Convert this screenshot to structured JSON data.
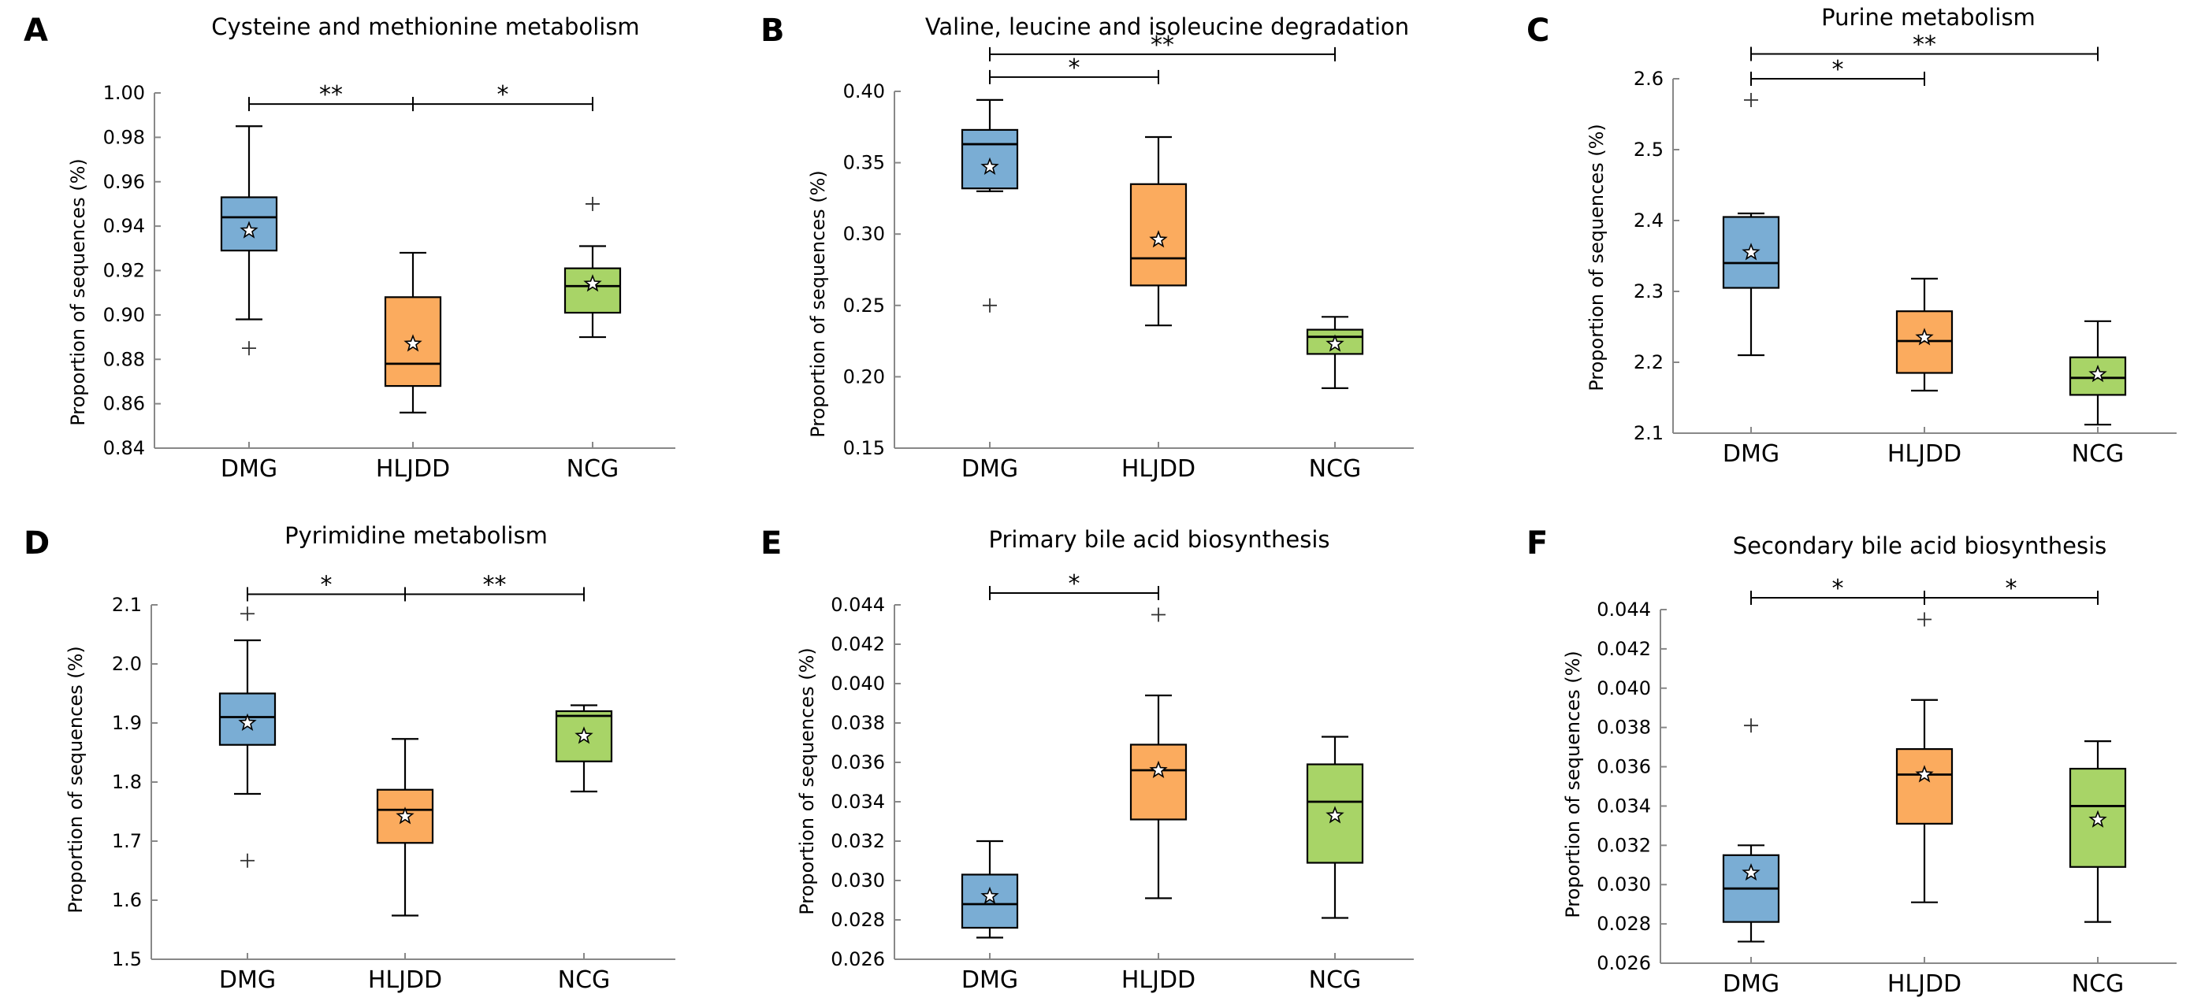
{
  "figure": {
    "group_names": [
      "DMG",
      "HLJDD",
      "NCG"
    ],
    "group_colors": [
      "#7aadd4",
      "#fbab5e",
      "#a8d467"
    ],
    "y_axis_label": "Proportion of sequences (%)"
  },
  "chart_data": [
    {
      "type": "box",
      "panel": "A",
      "title": "Cysteine and methionine metabolism",
      "xlabel": "",
      "ylabel": "Proportion of sequences (%)",
      "categories": [
        "DMG",
        "HLJDD",
        "NCG"
      ],
      "ylim": [
        0.84,
        1.0
      ],
      "yticks": [
        0.84,
        0.86,
        0.88,
        0.9,
        0.92,
        0.94,
        0.96,
        0.98,
        1.0
      ],
      "ytick_labels": [
        "0.84",
        "0.86",
        "0.88",
        "0.90",
        "0.92",
        "0.94",
        "0.96",
        "0.98",
        "1.00"
      ],
      "boxes": [
        {
          "group": "DMG",
          "whisker_low": 0.898,
          "q1": 0.929,
          "median": 0.944,
          "q3": 0.953,
          "whisker_high": 0.985,
          "mean": 0.938,
          "outliers": [
            0.885
          ]
        },
        {
          "group": "HLJDD",
          "whisker_low": 0.856,
          "q1": 0.868,
          "median": 0.878,
          "q3": 0.908,
          "whisker_high": 0.928,
          "mean": 0.887,
          "outliers": []
        },
        {
          "group": "NCG",
          "whisker_low": 0.89,
          "q1": 0.901,
          "median": 0.913,
          "q3": 0.921,
          "whisker_high": 0.931,
          "mean": 0.914,
          "outliers": [
            0.95
          ]
        }
      ],
      "significance": [
        {
          "from": "DMG",
          "to": "HLJDD",
          "label": "**",
          "y": 0.995
        },
        {
          "from": "HLJDD",
          "to": "NCG",
          "label": "*",
          "y": 0.995
        }
      ]
    },
    {
      "type": "box",
      "panel": "B",
      "title": "Valine, leucine and isoleucine degradation",
      "xlabel": "",
      "ylabel": "Proportion of sequences (%)",
      "categories": [
        "DMG",
        "HLJDD",
        "NCG"
      ],
      "ylim": [
        0.15,
        0.4
      ],
      "yticks": [
        0.15,
        0.2,
        0.25,
        0.3,
        0.35,
        0.4
      ],
      "ytick_labels": [
        "0.15",
        "0.20",
        "0.25",
        "0.30",
        "0.35",
        "0.40"
      ],
      "boxes": [
        {
          "group": "DMG",
          "whisker_low": 0.33,
          "q1": 0.332,
          "median": 0.363,
          "q3": 0.373,
          "whisker_high": 0.394,
          "mean": 0.347,
          "outliers": [
            0.25
          ]
        },
        {
          "group": "HLJDD",
          "whisker_low": 0.236,
          "q1": 0.264,
          "median": 0.283,
          "q3": 0.335,
          "whisker_high": 0.368,
          "mean": 0.296,
          "outliers": []
        },
        {
          "group": "NCG",
          "whisker_low": 0.192,
          "q1": 0.216,
          "median": 0.228,
          "q3": 0.233,
          "whisker_high": 0.242,
          "mean": 0.223,
          "outliers": []
        }
      ],
      "significance": [
        {
          "from": "DMG",
          "to": "HLJDD",
          "label": "*",
          "y": 0.41
        },
        {
          "from": "DMG",
          "to": "NCG",
          "label": "**",
          "y": 0.426
        }
      ]
    },
    {
      "type": "box",
      "panel": "C",
      "title": "Purine metabolism",
      "xlabel": "",
      "ylabel": "Proportion of sequences (%)",
      "categories": [
        "DMG",
        "HLJDD",
        "NCG"
      ],
      "ylim": [
        2.1,
        2.6
      ],
      "yticks": [
        2.1,
        2.2,
        2.3,
        2.4,
        2.5,
        2.6
      ],
      "ytick_labels": [
        "2.1",
        "2.2",
        "2.3",
        "2.4",
        "2.5",
        "2.6"
      ],
      "boxes": [
        {
          "group": "DMG",
          "whisker_low": 2.21,
          "q1": 2.305,
          "median": 2.34,
          "q3": 2.405,
          "whisker_high": 2.41,
          "mean": 2.355,
          "outliers": [
            2.57
          ]
        },
        {
          "group": "HLJDD",
          "whisker_low": 2.16,
          "q1": 2.185,
          "median": 2.23,
          "q3": 2.272,
          "whisker_high": 2.318,
          "mean": 2.235,
          "outliers": []
        },
        {
          "group": "NCG",
          "whisker_low": 2.112,
          "q1": 2.154,
          "median": 2.178,
          "q3": 2.207,
          "whisker_high": 2.258,
          "mean": 2.183,
          "outliers": []
        }
      ],
      "significance": [
        {
          "from": "DMG",
          "to": "HLJDD",
          "label": "*",
          "y": 2.6
        },
        {
          "from": "DMG",
          "to": "NCG",
          "label": "**",
          "y": 2.635
        }
      ]
    },
    {
      "type": "box",
      "panel": "D",
      "title": "Pyrimidine metabolism",
      "xlabel": "",
      "ylabel": "Proportion of sequences (%)",
      "categories": [
        "DMG",
        "HLJDD",
        "NCG"
      ],
      "ylim": [
        1.5,
        2.1
      ],
      "yticks": [
        1.5,
        1.6,
        1.7,
        1.8,
        1.9,
        2.0,
        2.1
      ],
      "ytick_labels": [
        "1.5",
        "1.6",
        "1.7",
        "1.8",
        "1.9",
        "2.0",
        "2.1"
      ],
      "boxes": [
        {
          "group": "DMG",
          "whisker_low": 1.78,
          "q1": 1.863,
          "median": 1.91,
          "q3": 1.95,
          "whisker_high": 2.04,
          "mean": 1.9,
          "outliers": [
            2.085,
            1.667
          ]
        },
        {
          "group": "HLJDD",
          "whisker_low": 1.574,
          "q1": 1.697,
          "median": 1.753,
          "q3": 1.787,
          "whisker_high": 1.873,
          "mean": 1.742,
          "outliers": []
        },
        {
          "group": "NCG",
          "whisker_low": 1.784,
          "q1": 1.835,
          "median": 1.912,
          "q3": 1.92,
          "whisker_high": 1.93,
          "mean": 1.878,
          "outliers": []
        }
      ],
      "significance": [
        {
          "from": "DMG",
          "to": "HLJDD",
          "label": "*",
          "y": 2.118
        },
        {
          "from": "HLJDD",
          "to": "NCG",
          "label": "**",
          "y": 2.118
        }
      ]
    },
    {
      "type": "box",
      "panel": "E",
      "title": "Primary bile acid biosynthesis",
      "xlabel": "",
      "ylabel": "Proportion of sequences (%)",
      "categories": [
        "DMG",
        "HLJDD",
        "NCG"
      ],
      "ylim": [
        0.026,
        0.044
      ],
      "yticks": [
        0.026,
        0.028,
        0.03,
        0.032,
        0.034,
        0.036,
        0.038,
        0.04,
        0.042,
        0.044
      ],
      "ytick_labels": [
        "0.026",
        "0.028",
        "0.030",
        "0.032",
        "0.034",
        "0.036",
        "0.038",
        "0.040",
        "0.042",
        "0.044"
      ],
      "boxes": [
        {
          "group": "DMG",
          "whisker_low": 0.0271,
          "q1": 0.0276,
          "median": 0.0288,
          "q3": 0.0303,
          "whisker_high": 0.032,
          "mean": 0.0292,
          "outliers": []
        },
        {
          "group": "HLJDD",
          "whisker_low": 0.0291,
          "q1": 0.0331,
          "median": 0.0356,
          "q3": 0.0369,
          "whisker_high": 0.0394,
          "mean": 0.0356,
          "outliers": [
            0.0435
          ]
        },
        {
          "group": "NCG",
          "whisker_low": 0.0281,
          "q1": 0.0309,
          "median": 0.034,
          "q3": 0.0359,
          "whisker_high": 0.0373,
          "mean": 0.0333,
          "outliers": []
        }
      ],
      "significance": [
        {
          "from": "DMG",
          "to": "HLJDD",
          "label": "*",
          "y": 0.0446
        }
      ]
    },
    {
      "type": "box",
      "panel": "F",
      "title": "Secondary bile acid biosynthesis",
      "xlabel": "",
      "ylabel": "Proportion of sequences (%)",
      "categories": [
        "DMG",
        "HLJDD",
        "NCG"
      ],
      "ylim": [
        0.026,
        0.044
      ],
      "yticks": [
        0.026,
        0.028,
        0.03,
        0.032,
        0.034,
        0.036,
        0.038,
        0.04,
        0.042,
        0.044
      ],
      "ytick_labels": [
        "0.026",
        "0.028",
        "0.030",
        "0.032",
        "0.034",
        "0.036",
        "0.038",
        "0.040",
        "0.042",
        "0.044"
      ],
      "boxes": [
        {
          "group": "DMG",
          "whisker_low": 0.0271,
          "q1": 0.0281,
          "median": 0.0298,
          "q3": 0.0315,
          "whisker_high": 0.032,
          "mean": 0.0306,
          "outliers": [
            0.0381
          ]
        },
        {
          "group": "HLJDD",
          "whisker_low": 0.0291,
          "q1": 0.0331,
          "median": 0.0356,
          "q3": 0.0369,
          "whisker_high": 0.0394,
          "mean": 0.0356,
          "outliers": [
            0.0435
          ]
        },
        {
          "group": "NCG",
          "whisker_low": 0.0281,
          "q1": 0.0309,
          "median": 0.034,
          "q3": 0.0359,
          "whisker_high": 0.0373,
          "mean": 0.0333,
          "outliers": []
        }
      ],
      "significance": [
        {
          "from": "DMG",
          "to": "HLJDD",
          "label": "*",
          "y": 0.0446
        },
        {
          "from": "HLJDD",
          "to": "NCG",
          "label": "*",
          "y": 0.0446
        }
      ]
    }
  ]
}
